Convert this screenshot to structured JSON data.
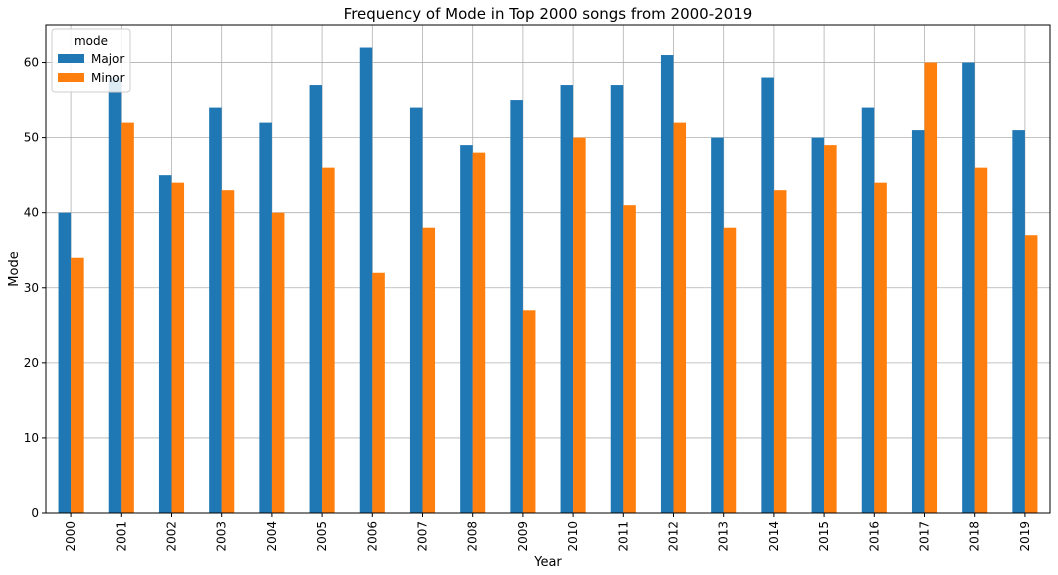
{
  "chart_data": {
    "type": "bar",
    "title": "Frequency of Mode in Top 2000 songs from 2000-2019",
    "xlabel": "Year",
    "ylabel": "Mode",
    "categories": [
      "2000",
      "2001",
      "2002",
      "2003",
      "2004",
      "2005",
      "2006",
      "2007",
      "2008",
      "2009",
      "2010",
      "2011",
      "2012",
      "2013",
      "2014",
      "2015",
      "2016",
      "2017",
      "2018",
      "2019"
    ],
    "series": [
      {
        "name": "Major",
        "color": "#1f77b4",
        "values": [
          40,
          58,
          45,
          54,
          52,
          57,
          62,
          54,
          49,
          55,
          57,
          57,
          61,
          50,
          58,
          50,
          54,
          51,
          60,
          51
        ]
      },
      {
        "name": "Minor",
        "color": "#ff7f0e",
        "values": [
          34,
          52,
          44,
          43,
          40,
          46,
          32,
          38,
          48,
          27,
          50,
          41,
          52,
          38,
          43,
          49,
          44,
          60,
          46,
          37
        ]
      }
    ],
    "ylim": [
      0,
      65
    ],
    "yticks": [
      0,
      10,
      20,
      30,
      40,
      50,
      60
    ],
    "grid": true,
    "legend": {
      "title": "mode",
      "position": "top-left"
    }
  }
}
